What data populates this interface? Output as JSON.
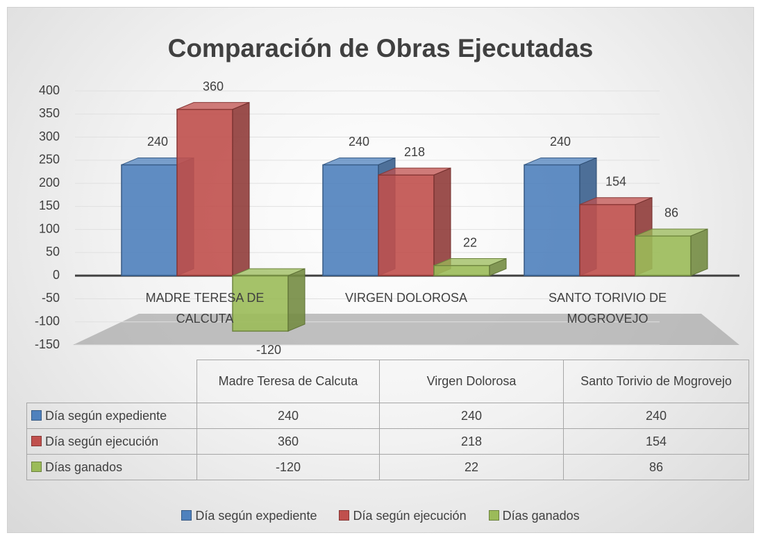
{
  "chart_data": {
    "type": "bar3d",
    "title": "Comparación de Obras Ejecutadas",
    "categories": [
      "MADRE TERESA DE CALCUTA",
      "VIRGEN DOLOROSA",
      "SANTO TORIVIO DE MOGROVEJO"
    ],
    "table_categories": [
      "Madre Teresa de Calcuta",
      "Virgen Dolorosa",
      "Santo Torivio de Mogrovejo"
    ],
    "series": [
      {
        "name": "Día según expediente",
        "color": "#4f81bd",
        "values": [
          240,
          240,
          240
        ]
      },
      {
        "name": "Día según ejecución",
        "color": "#c0504d",
        "values": [
          360,
          218,
          154
        ]
      },
      {
        "name": "Días ganados",
        "color": "#9bbb59",
        "values": [
          -120,
          22,
          86
        ]
      }
    ],
    "ylim": [
      -150,
      400
    ],
    "yticks": [
      -150,
      -100,
      -50,
      0,
      50,
      100,
      150,
      200,
      250,
      300,
      350,
      400
    ],
    "grid": true,
    "legend": "bottom"
  }
}
